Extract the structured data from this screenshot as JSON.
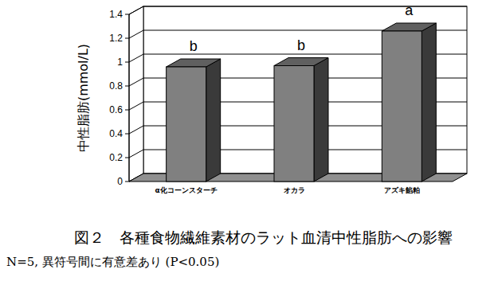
{
  "chart_data": {
    "type": "bar",
    "title": "図２　各種食物繊維素材のラット血清中性脂肪への影響",
    "subtitle": "N=5, 異符号間に有意差あり (P<0.05)",
    "y_label": "中性脂肪(mmol/L)",
    "categories": [
      "α化コーンスターチ",
      "オカラ",
      "アズキ餡粕"
    ],
    "values": [
      0.96,
      0.97,
      1.26
    ],
    "annotations": [
      "b",
      "b",
      "a"
    ],
    "color": "#808080",
    "ylim": [
      0,
      1.4
    ],
    "yticks": [
      0,
      0.2,
      0.4,
      0.6,
      0.8,
      1,
      1.2,
      1.4
    ],
    "grid": true
  }
}
